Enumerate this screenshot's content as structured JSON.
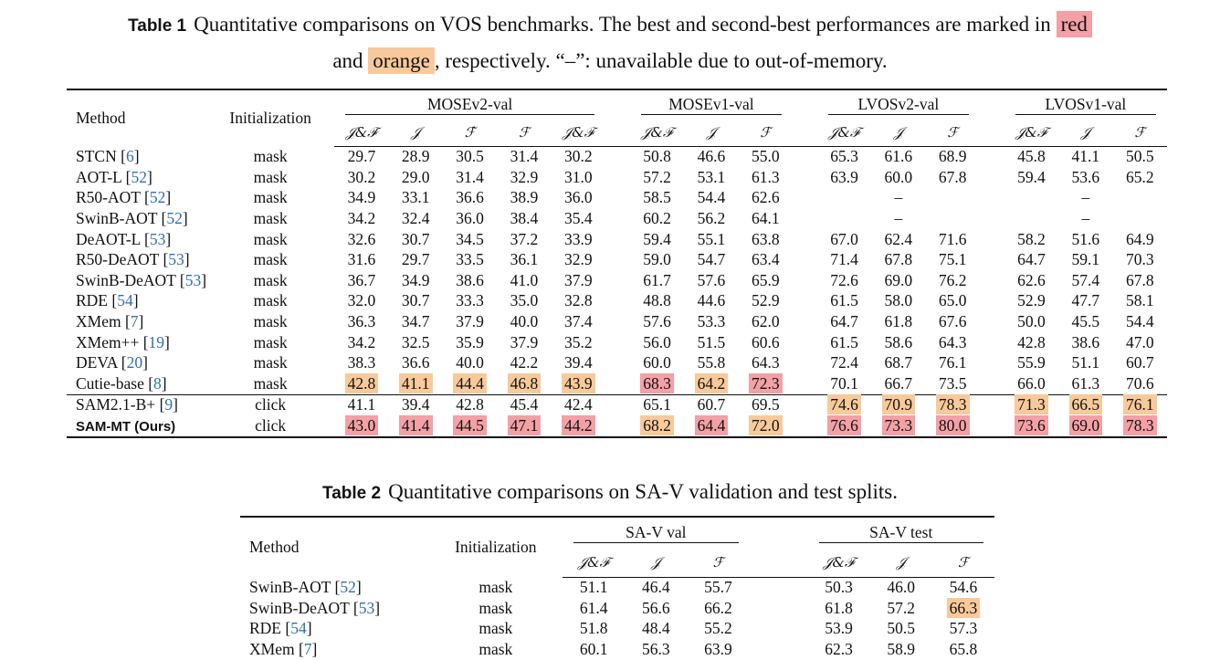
{
  "table1": {
    "caption_tag": "Table 1",
    "caption_pre": "Quantitative comparisons on VOS benchmarks. The best and second-best performances are marked in",
    "caption_red": "red",
    "caption_and": "and",
    "caption_orange": "orange",
    "caption_post": ", respectively. “–”: unavailable due to out-of-memory.",
    "head_method": "Method",
    "head_init": "Initialization",
    "groups": [
      "MOSEv2-val",
      "MOSEv1-val",
      "LVOSv2-val",
      "LVOSv1-val"
    ],
    "subcols": [
      "𝒥&ℱ̇",
      "𝒥",
      "ℱ̇",
      "ℱ",
      "𝒥&ℱ",
      "𝒥&ℱ",
      "𝒥",
      "ℱ",
      "𝒥&ℱ",
      "𝒥",
      "ℱ",
      "𝒥&ℱ",
      "𝒥",
      "ℱ"
    ],
    "rows": [
      {
        "method": "STCN",
        "cite": "6",
        "init": "mask",
        "v": [
          "29.7",
          "28.9",
          "30.5",
          "31.4",
          "30.2",
          "50.8",
          "46.6",
          "55.0",
          "65.3",
          "61.6",
          "68.9",
          "45.8",
          "41.1",
          "50.5"
        ]
      },
      {
        "method": "AOT-L",
        "cite": "52",
        "init": "mask",
        "v": [
          "30.2",
          "29.0",
          "31.4",
          "32.9",
          "31.0",
          "57.2",
          "53.1",
          "61.3",
          "63.9",
          "60.0",
          "67.8",
          "59.4",
          "53.6",
          "65.2"
        ]
      },
      {
        "method": "R50-AOT",
        "cite": "52",
        "init": "mask",
        "v": [
          "34.9",
          "33.1",
          "36.6",
          "38.9",
          "36.0",
          "58.5",
          "54.4",
          "62.6",
          "",
          "–",
          "",
          "",
          "–",
          ""
        ]
      },
      {
        "method": "SwinB-AOT",
        "cite": "52",
        "init": "mask",
        "v": [
          "34.2",
          "32.4",
          "36.0",
          "38.4",
          "35.4",
          "60.2",
          "56.2",
          "64.1",
          "",
          "–",
          "",
          "",
          "–",
          ""
        ]
      },
      {
        "method": "DeAOT-L",
        "cite": "53",
        "init": "mask",
        "v": [
          "32.6",
          "30.7",
          "34.5",
          "37.2",
          "33.9",
          "59.4",
          "55.1",
          "63.8",
          "67.0",
          "62.4",
          "71.6",
          "58.2",
          "51.6",
          "64.9"
        ]
      },
      {
        "method": "R50-DeAOT",
        "cite": "53",
        "init": "mask",
        "v": [
          "31.6",
          "29.7",
          "33.5",
          "36.1",
          "32.9",
          "59.0",
          "54.7",
          "63.4",
          "71.4",
          "67.8",
          "75.1",
          "64.7",
          "59.1",
          "70.3"
        ]
      },
      {
        "method": "SwinB-DeAOT",
        "cite": "53",
        "init": "mask",
        "v": [
          "36.7",
          "34.9",
          "38.6",
          "41.0",
          "37.9",
          "61.7",
          "57.6",
          "65.9",
          "72.6",
          "69.0",
          "76.2",
          "62.6",
          "57.4",
          "67.8"
        ]
      },
      {
        "method": "RDE",
        "cite": "54",
        "init": "mask",
        "v": [
          "32.0",
          "30.7",
          "33.3",
          "35.0",
          "32.8",
          "48.8",
          "44.6",
          "52.9",
          "61.5",
          "58.0",
          "65.0",
          "52.9",
          "47.7",
          "58.1"
        ]
      },
      {
        "method": "XMem",
        "cite": "7",
        "init": "mask",
        "v": [
          "36.3",
          "34.7",
          "37.9",
          "40.0",
          "37.4",
          "57.6",
          "53.3",
          "62.0",
          "64.7",
          "61.8",
          "67.6",
          "50.0",
          "45.5",
          "54.4"
        ]
      },
      {
        "method": "XMem++",
        "cite": "19",
        "init": "mask",
        "v": [
          "34.2",
          "32.5",
          "35.9",
          "37.9",
          "35.2",
          "56.0",
          "51.5",
          "60.6",
          "61.5",
          "58.6",
          "64.3",
          "42.8",
          "38.6",
          "47.0"
        ]
      },
      {
        "method": "DEVA",
        "cite": "20",
        "init": "mask",
        "v": [
          "38.3",
          "36.6",
          "40.0",
          "42.2",
          "39.4",
          "60.0",
          "55.8",
          "64.3",
          "72.4",
          "68.7",
          "76.1",
          "55.9",
          "51.1",
          "60.7"
        ]
      },
      {
        "method": "Cutie-base",
        "cite": "8",
        "init": "mask",
        "v": [
          "42.8",
          "41.1",
          "44.4",
          "46.8",
          "43.9",
          "68.3",
          "64.2",
          "72.3",
          "70.1",
          "66.7",
          "73.5",
          "66.0",
          "61.3",
          "70.6"
        ],
        "hl": [
          "o",
          "o",
          "o",
          "o",
          "o",
          "r",
          "o",
          "r",
          "",
          "",
          "",
          "",
          "",
          ""
        ]
      },
      {
        "method": "SAM2.1-B+",
        "cite": "9",
        "init": "click",
        "sep": true,
        "v": [
          "41.1",
          "39.4",
          "42.8",
          "45.4",
          "42.4",
          "65.1",
          "60.7",
          "69.5",
          "74.6",
          "70.9",
          "78.3",
          "71.3",
          "66.5",
          "76.1"
        ],
        "hl": [
          "",
          "",
          "",
          "",
          "",
          "",
          "",
          "",
          "o",
          "o",
          "o",
          "o",
          "o",
          "o"
        ]
      },
      {
        "method": "SAM-MT (Ours)",
        "cite": "",
        "init": "click",
        "ours": true,
        "v": [
          "43.0",
          "41.4",
          "44.5",
          "47.1",
          "44.2",
          "68.2",
          "64.4",
          "72.0",
          "76.6",
          "73.3",
          "80.0",
          "73.6",
          "69.0",
          "78.3"
        ],
        "hl": [
          "r",
          "r",
          "r",
          "r",
          "r",
          "o",
          "r",
          "o",
          "r",
          "r",
          "r",
          "r",
          "r",
          "r"
        ]
      }
    ]
  },
  "table2": {
    "caption_tag": "Table 2",
    "caption": "Quantitative comparisons on SA-V validation and test splits.",
    "head_method": "Method",
    "head_init": "Initialization",
    "groups": [
      "SA-V val",
      "SA-V test"
    ],
    "subcols": [
      "𝒥&ℱ",
      "𝒥",
      "ℱ",
      "𝒥&ℱ",
      "𝒥",
      "ℱ"
    ],
    "rows": [
      {
        "method": "SwinB-AOT",
        "cite": "52",
        "init": "mask",
        "v": [
          "51.1",
          "46.4",
          "55.7",
          "50.3",
          "46.0",
          "54.6"
        ]
      },
      {
        "method": "SwinB-DeAOT",
        "cite": "53",
        "init": "mask",
        "v": [
          "61.4",
          "56.6",
          "66.2",
          "61.8",
          "57.2",
          "66.3"
        ],
        "hl": [
          "",
          "",
          "",
          "",
          "",
          "o"
        ]
      },
      {
        "method": "RDE",
        "cite": "54",
        "init": "mask",
        "v": [
          "51.8",
          "48.4",
          "55.2",
          "53.9",
          "50.5",
          "57.3"
        ]
      },
      {
        "method": "XMem",
        "cite": "7",
        "init": "mask",
        "v": [
          "60.1",
          "56.3",
          "63.9",
          "62.3",
          "58.9",
          "65.8"
        ]
      }
    ]
  },
  "colors": {
    "best": "#f3a0a6",
    "second": "#f8c99a",
    "citation": "#2f6eb5"
  }
}
